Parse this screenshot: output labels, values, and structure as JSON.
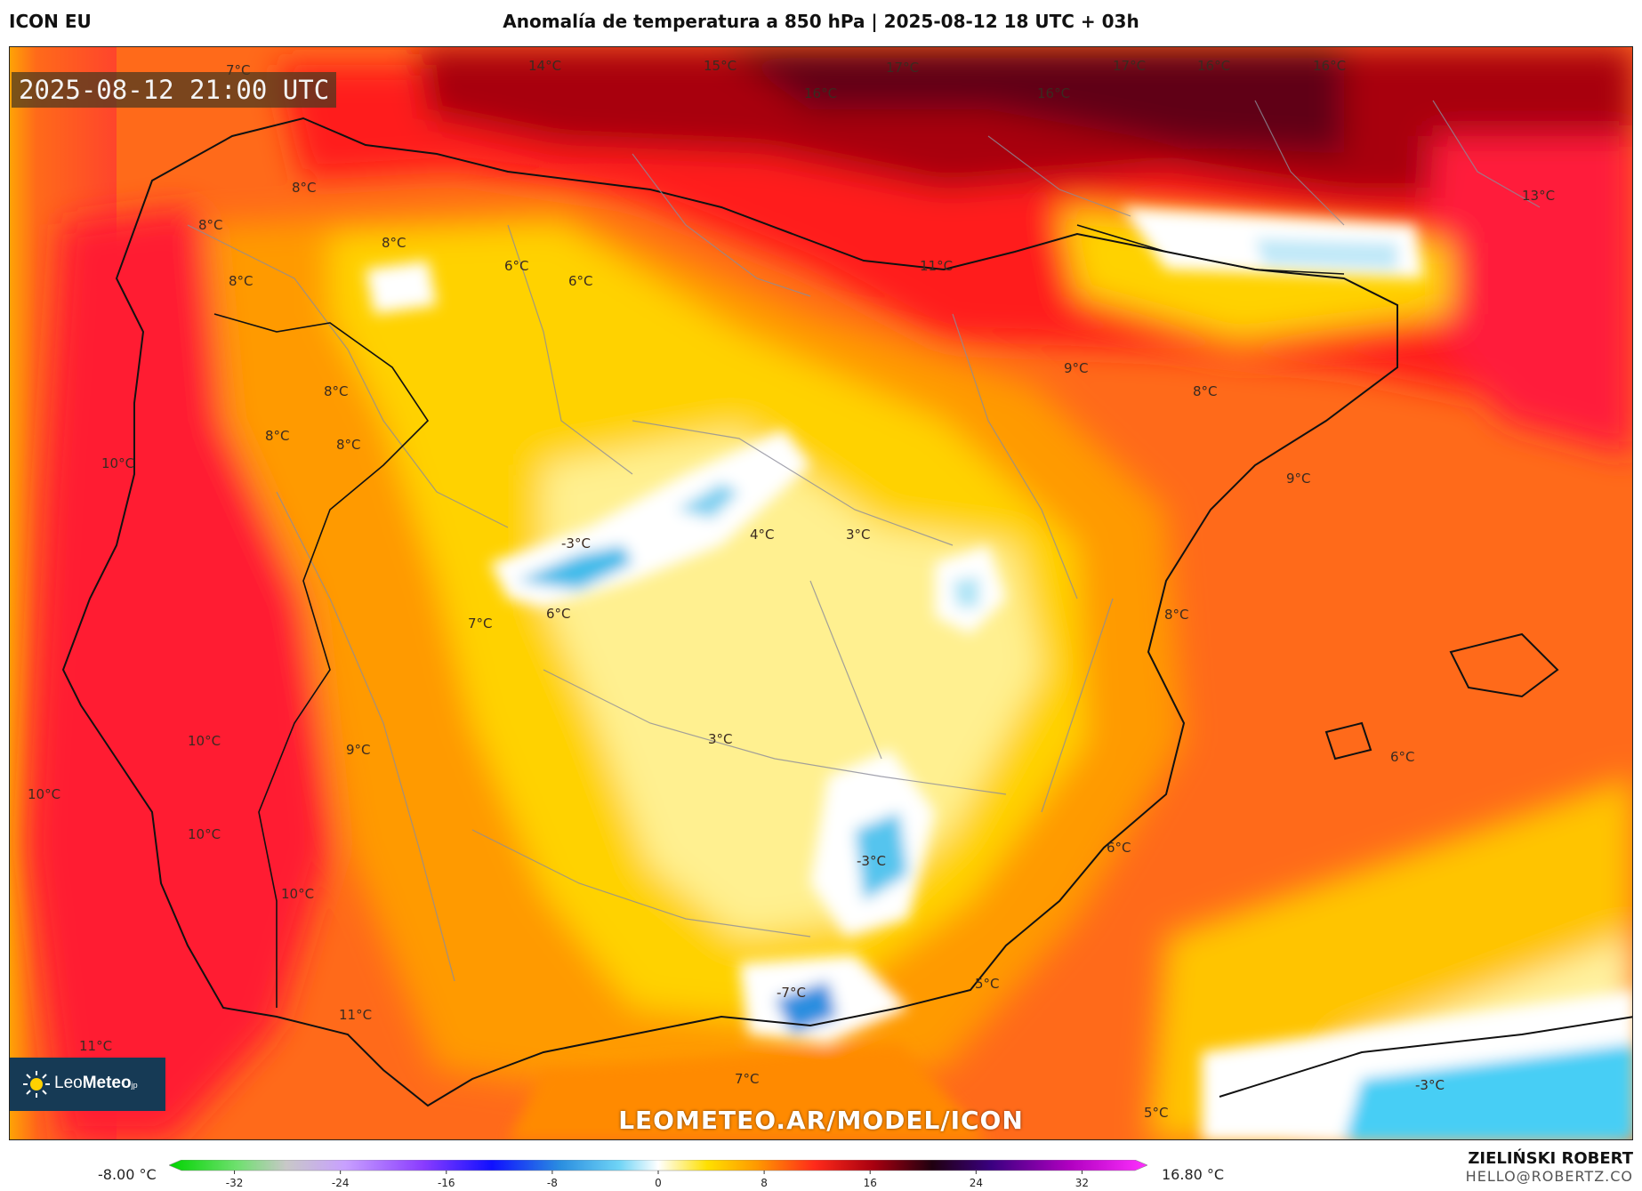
{
  "header": {
    "model": "ICON EU",
    "title": "Anomalía de temperatura a 850 hPa | 2025-08-12 18 UTC + 03h"
  },
  "map": {
    "timestamp": "2025-08-12 21:00 UTC",
    "watermark": "LEOMETEO.AR/MODEL/ICON",
    "logo": {
      "brand_light": "Leo",
      "brand_bold": "Meteo",
      "suffix": "jp"
    },
    "labels": [
      {
        "text": "7°C",
        "id": "a"
      },
      {
        "text": "14°C",
        "id": "b"
      },
      {
        "text": "15°C",
        "id": "c"
      },
      {
        "text": "17°C",
        "id": "d"
      },
      {
        "text": "16°C",
        "id": "e"
      },
      {
        "text": "16°C",
        "id": "f"
      },
      {
        "text": "17°C",
        "id": "g"
      },
      {
        "text": "16°C",
        "id": "h"
      },
      {
        "text": "16°C",
        "id": "i"
      },
      {
        "text": "13°C",
        "id": "j"
      },
      {
        "text": "8°C",
        "id": "k"
      },
      {
        "text": "8°C",
        "id": "l"
      },
      {
        "text": "8°C",
        "id": "m"
      },
      {
        "text": "8°C",
        "id": "n"
      },
      {
        "text": "6°C",
        "id": "o"
      },
      {
        "text": "6°C",
        "id": "p"
      },
      {
        "text": "11°C",
        "id": "q"
      },
      {
        "text": "9°C",
        "id": "r"
      },
      {
        "text": "8°C",
        "id": "s"
      },
      {
        "text": "8°C",
        "id": "t"
      },
      {
        "text": "8°C",
        "id": "u"
      },
      {
        "text": "8°C",
        "id": "v"
      },
      {
        "text": "10°C",
        "id": "w"
      },
      {
        "text": "9°C",
        "id": "x"
      },
      {
        "text": "4°C",
        "id": "y"
      },
      {
        "text": "3°C",
        "id": "z"
      },
      {
        "text": "-3°C",
        "id": "aa"
      },
      {
        "text": "7°C",
        "id": "ab"
      },
      {
        "text": "6°C",
        "id": "ac"
      },
      {
        "text": "8°C",
        "id": "ad"
      },
      {
        "text": "3°C",
        "id": "ae"
      },
      {
        "text": "10°C",
        "id": "af"
      },
      {
        "text": "9°C",
        "id": "ag"
      },
      {
        "text": "6°C",
        "id": "ah"
      },
      {
        "text": "10°C",
        "id": "ai"
      },
      {
        "text": "10°C",
        "id": "aj"
      },
      {
        "text": "-3°C",
        "id": "ak"
      },
      {
        "text": "6°C",
        "id": "al"
      },
      {
        "text": "10°C",
        "id": "am"
      },
      {
        "text": "-7°C",
        "id": "an"
      },
      {
        "text": "5°C",
        "id": "ao"
      },
      {
        "text": "11°C",
        "id": "ap"
      },
      {
        "text": "11°C",
        "id": "aq"
      },
      {
        "text": "7°C",
        "id": "ar"
      },
      {
        "text": "5°C",
        "id": "as"
      },
      {
        "text": "-3°C",
        "id": "at"
      }
    ]
  },
  "legend": {
    "min": "-8.00 °C",
    "max": "16.80 °C",
    "ticks": [
      "-32",
      "-24",
      "-16",
      "-8",
      "0",
      "8",
      "16",
      "24",
      "32"
    ],
    "tick_values": [
      -32,
      -24,
      -16,
      -8,
      0,
      8,
      16,
      24,
      32
    ],
    "range": [
      -36,
      36
    ]
  },
  "author": {
    "name": "ZIELIŃSKI ROBERT",
    "email": "HELLO@ROBERTZ.CO"
  }
}
